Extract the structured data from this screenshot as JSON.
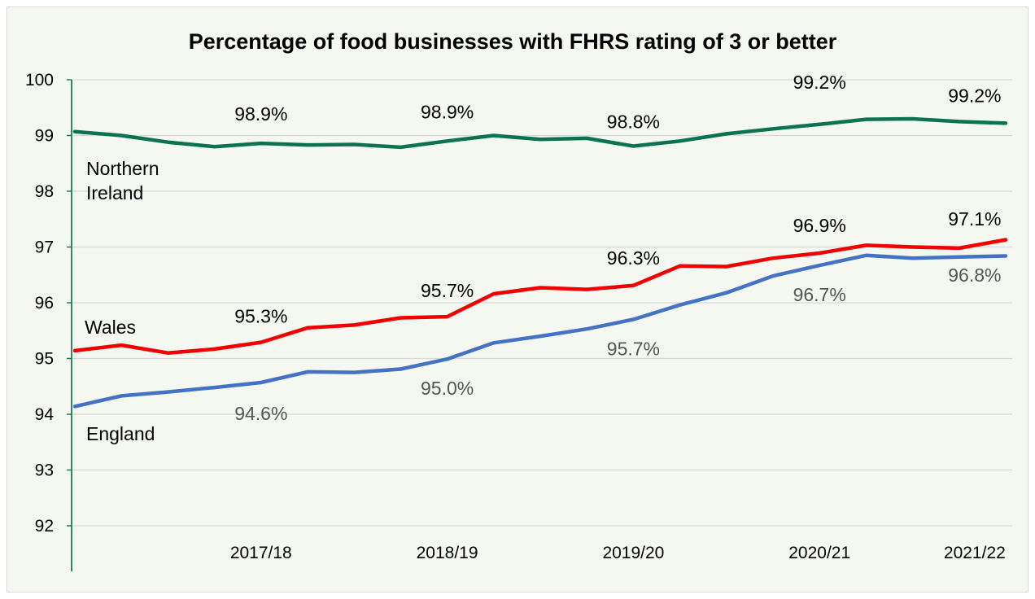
{
  "chart_data": {
    "type": "line",
    "title": "Percentage of food businesses with FHRS rating of 3 or better",
    "xlabel": "",
    "ylabel": "",
    "ylim": [
      92,
      100
    ],
    "yticks": [
      92,
      93,
      94,
      95,
      96,
      97,
      98,
      99,
      100
    ],
    "grid": "horizontal",
    "axis_color": "#1f7a57",
    "x_tick_labels": [
      {
        "label": "2017/18",
        "index": 6
      },
      {
        "label": "2018/19",
        "index": 12
      },
      {
        "label": "2019/20",
        "index": 18
      },
      {
        "label": "2020/21",
        "index": 24
      },
      {
        "label": "2021/22",
        "index": 29
      }
    ],
    "series": [
      {
        "name": "Northern Ireland",
        "label_lines": [
          "Northern",
          "Ireland"
        ],
        "color": "#0b7352",
        "values": [
          99.07,
          99.0,
          98.88,
          98.8,
          98.86,
          98.83,
          98.84,
          98.79,
          98.9,
          99.0,
          98.93,
          98.95,
          98.81,
          98.9,
          99.03,
          99.12,
          99.2,
          99.29,
          99.3,
          99.25,
          99.22
        ],
        "data_labels": [
          {
            "index": 6,
            "text": "98.9%"
          },
          {
            "index": 12,
            "text": "98.9%"
          },
          {
            "index": 18,
            "text": "98.8%"
          },
          {
            "index": 24,
            "text": "99.2%"
          },
          {
            "index": 29,
            "text": "99.2%"
          }
        ]
      },
      {
        "name": "Wales",
        "label_lines": [
          "Wales"
        ],
        "color": "#f20000",
        "values": [
          95.14,
          95.24,
          95.1,
          95.17,
          95.29,
          95.55,
          95.6,
          95.73,
          95.75,
          96.16,
          96.27,
          96.24,
          96.31,
          96.66,
          96.65,
          96.8,
          96.89,
          97.03,
          97.0,
          96.98,
          97.13
        ],
        "data_labels": [
          {
            "index": 6,
            "text": "95.3%"
          },
          {
            "index": 12,
            "text": "95.7%"
          },
          {
            "index": 18,
            "text": "96.3%"
          },
          {
            "index": 24,
            "text": "96.9%"
          },
          {
            "index": 29,
            "text": "97.1%"
          }
        ]
      },
      {
        "name": "England",
        "label_lines": [
          "England"
        ],
        "color": "#4472c4",
        "values": [
          94.14,
          94.33,
          94.4,
          94.48,
          94.57,
          94.76,
          94.75,
          94.81,
          94.99,
          95.28,
          95.4,
          95.53,
          95.7,
          95.96,
          96.18,
          96.48,
          96.67,
          96.85,
          96.8,
          96.82,
          96.84
        ],
        "data_labels": [
          {
            "index": 6,
            "text": "94.6%"
          },
          {
            "index": 12,
            "text": "95.0%"
          },
          {
            "index": 18,
            "text": "95.7%"
          },
          {
            "index": 24,
            "text": "96.7%"
          },
          {
            "index": 29,
            "text": "96.8%"
          }
        ]
      }
    ]
  }
}
